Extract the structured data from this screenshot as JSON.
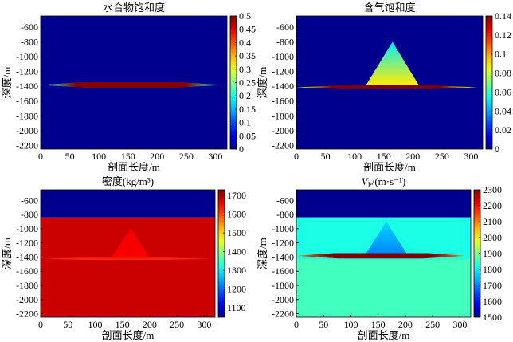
{
  "figure": {
    "colors": {
      "jet": [
        "#00008f",
        "#0000ff",
        "#00ffff",
        "#ffff00",
        "#ff0000",
        "#800000"
      ],
      "seabed_blue": "#00008f",
      "sediment_red": "#b80000",
      "vp_background": "#2dff9c"
    }
  },
  "chart_data": [
    {
      "type": "heatmap",
      "title": "水合物饱和度",
      "xlabel": "剖面长度/m",
      "ylabel": "深度/m",
      "xlim": [
        0,
        320
      ],
      "ylim": [
        -2250,
        -450
      ],
      "xticks": [
        "0",
        "50",
        "100",
        "150",
        "200",
        "250",
        "300"
      ],
      "yticks": [
        "-600",
        "-800",
        "-1000",
        "-1200",
        "-1400",
        "-1600",
        "-1800",
        "-2000",
        "-2200"
      ],
      "colorbar": {
        "min": 0,
        "max": 0.5,
        "ticks": [
          "0.5",
          "0.45",
          "0.4",
          "0.35",
          "0.3",
          "0.25",
          "0.2",
          "0.15",
          "0.1",
          "0.05",
          "0"
        ]
      },
      "background_value": 0,
      "features": [
        {
          "name": "hydrate layer",
          "x_range": [
            0,
            310
          ],
          "depth_top": -1345,
          "depth_bottom": -1420,
          "value": 0.5,
          "edge_value": 0.2
        }
      ]
    },
    {
      "type": "heatmap",
      "title": "含气饱和度",
      "xlabel": "剖面长度/m",
      "ylabel": "深度/m",
      "xlim": [
        0,
        320
      ],
      "ylim": [
        -2250,
        -450
      ],
      "xticks": [
        "0",
        "50",
        "100",
        "150",
        "200",
        "250",
        "300"
      ],
      "yticks": [
        "-600",
        "-800",
        "-1000",
        "-1200",
        "-1400",
        "-1600",
        "-1800",
        "-2000",
        "-2200"
      ],
      "colorbar": {
        "min": 0,
        "max": 0.14,
        "ticks": [
          "0.14",
          "0.12",
          "0.1",
          "0.08",
          "0.06",
          "0.04",
          "0.02",
          "0"
        ]
      },
      "background_value": 0,
      "features": [
        {
          "name": "gas chimney",
          "x_apex": 165,
          "depth_apex": -800,
          "x_base": [
            120,
            210
          ],
          "depth_base": -1380,
          "value_top": 0.05,
          "value_base": 0.09
        },
        {
          "name": "free gas layer",
          "x_range": [
            0,
            310
          ],
          "depth_top": -1390,
          "depth_bottom": -1440,
          "value": 0.14,
          "edge_value": 0.08
        }
      ]
    },
    {
      "type": "heatmap",
      "title": "密度(kg/m³)",
      "xlabel": "剖面长度/m",
      "ylabel": "深度/m",
      "xlim": [
        0,
        320
      ],
      "ylim": [
        -2250,
        -450
      ],
      "xticks": [
        "0",
        "50",
        "100",
        "150",
        "200",
        "250",
        "300"
      ],
      "yticks": [
        "-600",
        "-800",
        "-1000",
        "-1200",
        "-1400",
        "-1600",
        "-1800",
        "-2000",
        "-2200"
      ],
      "colorbar": {
        "min": 1050,
        "max": 1730,
        "ticks": [
          "1700",
          "1600",
          "1500",
          "1400",
          "1300",
          "1200",
          "1100"
        ]
      },
      "seafloor_depth": -840,
      "water_value": 1030,
      "sediment_value": 1680,
      "features": [
        {
          "name": "gas chimney",
          "x_apex": 165,
          "depth_apex": -1000,
          "x_base": [
            130,
            200
          ],
          "depth_base": -1400,
          "value": 1650
        },
        {
          "name": "gas layer",
          "x_range": [
            0,
            310
          ],
          "depth_top": -1410,
          "depth_bottom": -1440,
          "value": 1620
        }
      ]
    },
    {
      "type": "heatmap",
      "title": "V",
      "title_sub": "P",
      "title_suffix": "/(m·s⁻¹)",
      "xlabel": "剖面长度/m",
      "ylabel": "深度/m",
      "xlim": [
        0,
        320
      ],
      "ylim": [
        -2250,
        -450
      ],
      "xticks": [
        "0",
        "50",
        "100",
        "150",
        "200",
        "250",
        "300"
      ],
      "yticks": [
        "-600",
        "-800",
        "-1000",
        "-1200",
        "-1400",
        "-1600",
        "-1800",
        "-2000",
        "-2200"
      ],
      "colorbar": {
        "min": 1500,
        "max": 2300,
        "ticks": [
          "2300",
          "2200",
          "2100",
          "2000",
          "1900",
          "1800",
          "1700",
          "1600",
          "1500"
        ]
      },
      "seafloor_depth": -840,
      "water_value": 1500,
      "sediment_value": 1820,
      "deep_value": 1850,
      "features": [
        {
          "name": "gas chimney",
          "x_apex": 165,
          "depth_apex": -900,
          "x_base": [
            125,
            205
          ],
          "depth_base": -1380,
          "value_top": 1770,
          "value_base": 1700
        },
        {
          "name": "hydrate layer",
          "x_range": [
            0,
            310
          ],
          "depth_top": -1345,
          "depth_bottom": -1420,
          "value": 2300,
          "edge_value": 2100
        }
      ]
    }
  ]
}
